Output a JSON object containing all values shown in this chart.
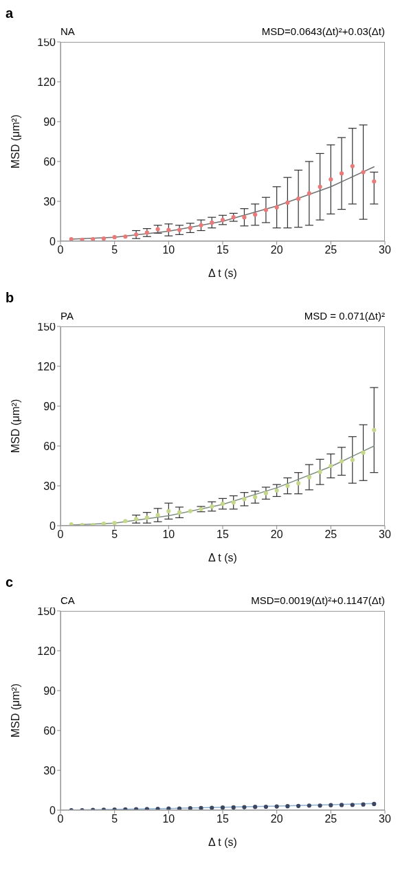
{
  "chart_data": [
    {
      "type": "scatter",
      "title": "a",
      "subtitle": "NA",
      "annotations": [
        "MSD=0.0643(Δt)²+0.03(Δt)"
      ],
      "xlabel": "Δ t (s)",
      "ylabel": "MSD (μm²)",
      "xlim": [
        0,
        30
      ],
      "xticks": [
        0,
        5,
        10,
        15,
        20,
        25,
        30
      ],
      "ylim": [
        0,
        150
      ],
      "yticks": [
        0,
        30,
        60,
        90,
        120,
        150
      ],
      "marker": "circle",
      "series": [
        {
          "color": "#e87a7a",
          "x": [
            1,
            2,
            3,
            4,
            5,
            6,
            7,
            8,
            9,
            10,
            11,
            12,
            13,
            14,
            15,
            16,
            17,
            18,
            19,
            20,
            21,
            22,
            23,
            24,
            25,
            26,
            27,
            28,
            29
          ],
          "values": [
            1.5,
            1,
            1.5,
            2,
            3,
            3.5,
            5,
            6.5,
            9,
            8.5,
            8.5,
            10,
            12,
            14,
            16,
            18,
            18,
            20,
            23.5,
            25.5,
            29,
            32,
            36,
            41,
            46.5,
            51,
            56.5,
            52,
            45
          ],
          "errors": [
            null,
            null,
            null,
            null,
            null,
            null,
            3,
            3,
            3,
            4.5,
            3.5,
            3.5,
            4,
            4,
            3.5,
            3,
            6.5,
            8,
            9.5,
            15.5,
            19,
            21.5,
            24,
            25,
            26,
            27,
            28.5,
            35.5,
            [
              28,
              52
            ]
          ]
        },
        {
          "type": "line",
          "color": "#707070",
          "marker": "none",
          "line_style": "solid",
          "x": [
            1,
            5,
            10,
            15,
            20,
            25,
            29
          ],
          "values": [
            1.5,
            3,
            7.5,
            15,
            26.5,
            41,
            56
          ]
        }
      ]
    },
    {
      "type": "scatter",
      "title": "b",
      "subtitle": "PA",
      "annotations": [
        "MSD = 0.071(Δt)²"
      ],
      "xlabel": "Δ t (s)",
      "ylabel": "MSD (μm²)",
      "xlim": [
        0,
        30
      ],
      "xticks": [
        0,
        5,
        10,
        15,
        20,
        25,
        30
      ],
      "ylim": [
        0,
        150
      ],
      "yticks": [
        0,
        30,
        60,
        90,
        120,
        150
      ],
      "marker": "circle",
      "series": [
        {
          "color": "#c5d88a",
          "x": [
            1,
            2,
            3,
            4,
            5,
            6,
            7,
            8,
            9,
            10,
            11,
            12,
            13,
            14,
            15,
            16,
            17,
            18,
            19,
            20,
            21,
            22,
            23,
            24,
            25,
            26,
            27,
            28,
            29
          ],
          "values": [
            1,
            0.5,
            0.5,
            1.5,
            2,
            3.5,
            5,
            6,
            8,
            11,
            10,
            11,
            12.5,
            14.5,
            16.5,
            17.5,
            20,
            21.5,
            24.5,
            26.5,
            30,
            32,
            36.5,
            40.5,
            45,
            48.5,
            49.5,
            55,
            72
          ],
          "errors": [
            null,
            null,
            null,
            null,
            null,
            null,
            3,
            4,
            5,
            6,
            4,
            null,
            2,
            3.5,
            4,
            5,
            5,
            4.5,
            4.5,
            4.5,
            6,
            8,
            9.5,
            9.5,
            9,
            10.5,
            17.5,
            21,
            32
          ]
        },
        {
          "type": "line",
          "color": "#7f8f80",
          "marker": "none",
          "line_style": "solid",
          "x": [
            1,
            5,
            10,
            15,
            20,
            25,
            29
          ],
          "values": [
            0.5,
            2,
            7.5,
            16,
            28.5,
            44.5,
            60
          ]
        }
      ]
    },
    {
      "type": "scatter",
      "title": "c",
      "subtitle": "CA",
      "annotations": [
        "MSD=0.0019(Δt)²+0.1147(Δt)"
      ],
      "xlabel": "Δ t (s)",
      "ylabel": "MSD (μm²)",
      "xlim": [
        0,
        30
      ],
      "xticks": [
        0,
        5,
        10,
        15,
        20,
        25,
        30
      ],
      "ylim": [
        0,
        150
      ],
      "yticks": [
        0,
        30,
        60,
        90,
        120,
        150
      ],
      "marker": "circle",
      "series": [
        {
          "color": "#3c4660",
          "x": [
            1,
            2,
            3,
            4,
            5,
            6,
            7,
            8,
            9,
            10,
            11,
            12,
            13,
            14,
            15,
            16,
            17,
            18,
            19,
            20,
            21,
            22,
            23,
            24,
            25,
            26,
            27,
            28,
            29
          ],
          "values": [
            0,
            0,
            0.2,
            0.3,
            0.5,
            0.6,
            0.7,
            0.9,
            1,
            1.2,
            1.3,
            1.5,
            1.6,
            1.8,
            2,
            2.1,
            2.3,
            2.5,
            2.6,
            2.8,
            3,
            3.2,
            3.5,
            3.5,
            3.8,
            3.9,
            4,
            4.3,
            4.7
          ]
        },
        {
          "type": "line",
          "color": "#8aaed0",
          "marker": "none",
          "line_style": "solid",
          "x": [
            1,
            10,
            20,
            29
          ],
          "values": [
            0.1,
            1.3,
            3.1,
            5
          ]
        }
      ]
    }
  ]
}
